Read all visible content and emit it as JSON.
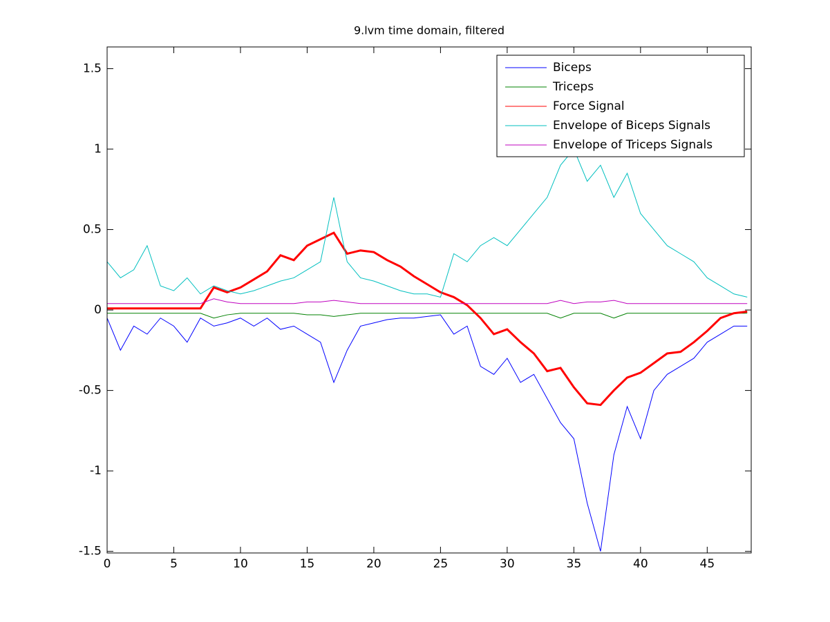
{
  "chart_data": {
    "type": "line",
    "title": "9.lvm time domain, filtered",
    "x": [
      0,
      1,
      2,
      3,
      4,
      5,
      6,
      7,
      8,
      9,
      10,
      11,
      12,
      13,
      14,
      15,
      16,
      17,
      18,
      19,
      20,
      21,
      22,
      23,
      24,
      25,
      26,
      27,
      28,
      29,
      30,
      31,
      32,
      33,
      34,
      35,
      36,
      37,
      38,
      39,
      40,
      41,
      42,
      43,
      44,
      45,
      46,
      47,
      48
    ],
    "series": [
      {
        "name": "Biceps",
        "color": "#0000ff",
        "values": [
          -0.05,
          -0.25,
          -0.1,
          -0.15,
          -0.05,
          -0.1,
          -0.2,
          -0.05,
          -0.1,
          -0.08,
          -0.05,
          -0.1,
          -0.05,
          -0.12,
          -0.1,
          -0.15,
          -0.2,
          -0.45,
          -0.25,
          -0.1,
          -0.08,
          -0.06,
          -0.05,
          -0.05,
          -0.04,
          -0.03,
          -0.15,
          -0.1,
          -0.35,
          -0.4,
          -0.3,
          -0.45,
          -0.4,
          -0.55,
          -0.7,
          -0.8,
          -1.2,
          -1.5,
          -0.9,
          -0.6,
          -0.8,
          -0.5,
          -0.4,
          -0.35,
          -0.3,
          -0.2,
          -0.15,
          -0.1,
          -0.1
        ]
      },
      {
        "name": "Triceps",
        "color": "#008000",
        "values": [
          -0.02,
          -0.02,
          -0.02,
          -0.02,
          -0.02,
          -0.02,
          -0.02,
          -0.02,
          -0.05,
          -0.03,
          -0.02,
          -0.02,
          -0.02,
          -0.02,
          -0.02,
          -0.03,
          -0.03,
          -0.04,
          -0.03,
          -0.02,
          -0.02,
          -0.02,
          -0.02,
          -0.02,
          -0.02,
          -0.02,
          -0.02,
          -0.02,
          -0.02,
          -0.02,
          -0.02,
          -0.02,
          -0.02,
          -0.02,
          -0.05,
          -0.02,
          -0.02,
          -0.02,
          -0.05,
          -0.02,
          -0.02,
          -0.02,
          -0.02,
          -0.02,
          -0.02,
          -0.02,
          -0.02,
          -0.02,
          -0.02
        ]
      },
      {
        "name": "Force Signal",
        "color": "#ff0000",
        "values": [
          0.01,
          0.01,
          0.01,
          0.01,
          0.01,
          0.01,
          0.01,
          0.01,
          0.14,
          0.11,
          0.14,
          0.19,
          0.24,
          0.34,
          0.31,
          0.4,
          0.44,
          0.48,
          0.35,
          0.37,
          0.36,
          0.31,
          0.27,
          0.21,
          0.16,
          0.11,
          0.08,
          0.03,
          -0.05,
          -0.15,
          -0.12,
          -0.2,
          -0.27,
          -0.38,
          -0.36,
          -0.48,
          -0.58,
          -0.59,
          -0.5,
          -0.42,
          -0.39,
          -0.33,
          -0.27,
          -0.26,
          -0.2,
          -0.13,
          -0.05,
          -0.02,
          -0.01
        ]
      },
      {
        "name": "Envelope of Biceps Signals",
        "color": "#00bfbf",
        "values": [
          0.3,
          0.2,
          0.25,
          0.4,
          0.15,
          0.12,
          0.2,
          0.1,
          0.15,
          0.12,
          0.1,
          0.12,
          0.15,
          0.18,
          0.2,
          0.25,
          0.3,
          0.7,
          0.3,
          0.2,
          0.18,
          0.15,
          0.12,
          0.1,
          0.1,
          0.08,
          0.35,
          0.3,
          0.4,
          0.45,
          0.4,
          0.5,
          0.6,
          0.7,
          0.9,
          1.0,
          0.8,
          0.9,
          0.7,
          0.85,
          0.6,
          0.5,
          0.4,
          0.35,
          0.3,
          0.2,
          0.15,
          0.1,
          0.08
        ]
      },
      {
        "name": "Envelope of Triceps Signals",
        "color": "#bf00bf",
        "values": [
          0.04,
          0.04,
          0.04,
          0.04,
          0.04,
          0.04,
          0.04,
          0.04,
          0.07,
          0.05,
          0.04,
          0.04,
          0.04,
          0.04,
          0.04,
          0.05,
          0.05,
          0.06,
          0.05,
          0.04,
          0.04,
          0.04,
          0.04,
          0.04,
          0.04,
          0.04,
          0.04,
          0.04,
          0.04,
          0.04,
          0.04,
          0.04,
          0.04,
          0.04,
          0.06,
          0.04,
          0.05,
          0.05,
          0.06,
          0.04,
          0.04,
          0.04,
          0.04,
          0.04,
          0.04,
          0.04,
          0.04,
          0.04,
          0.04
        ]
      }
    ],
    "xlim": [
      0,
      48.3
    ],
    "xticks": [
      0,
      5,
      10,
      15,
      20,
      25,
      30,
      35,
      40,
      45
    ],
    "ylim": [
      -1.51,
      1.635
    ],
    "yticks": [
      -1.5,
      -1,
      -0.5,
      0,
      0.5,
      1,
      1.5
    ],
    "legend": "top-right",
    "grid": false
  }
}
